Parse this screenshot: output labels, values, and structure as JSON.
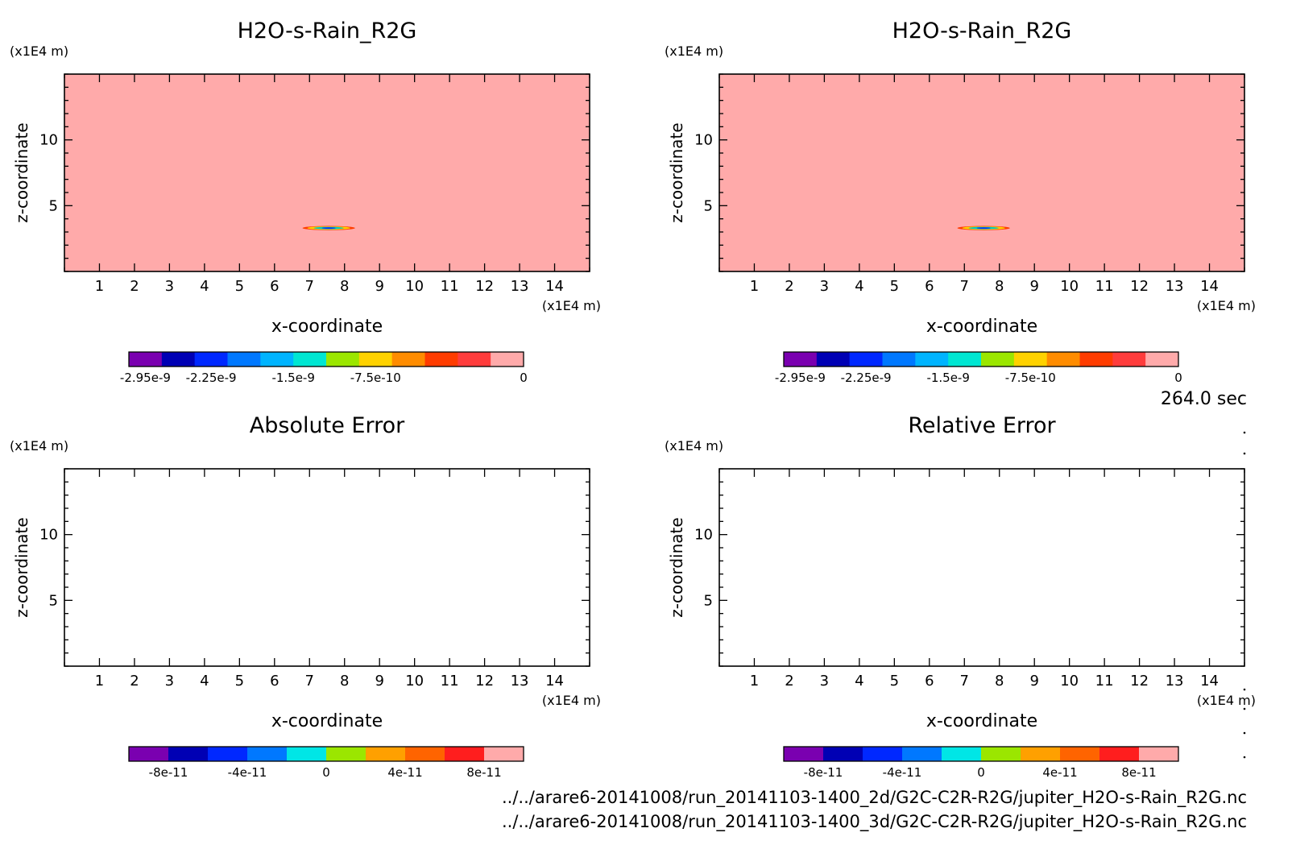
{
  "time_label": "264.0 sec",
  "footer": {
    "line1": "../../arare6-20141008/run_20141103-1400_2d/G2C-C2R-R2G/jupiter_H2O-s-Rain_R2G.nc",
    "line2": "../../arare6-20141008/run_20141103-1400_3d/G2C-C2R-R2G/jupiter_H2O-s-Rain_R2G.nc"
  },
  "chart_data": [
    {
      "type": "heatmap",
      "title": "H2O-s-Rain_R2G",
      "xlabel": "x-coordinate",
      "ylabel": "z-coordinate",
      "x_unit": "(x1E4 m)",
      "y_unit": "(x1E4 m)",
      "xlim": [
        0,
        15
      ],
      "ylim": [
        0,
        15
      ],
      "xticks": [
        "1",
        "2",
        "3",
        "4",
        "5",
        "6",
        "7",
        "8",
        "9",
        "10",
        "11",
        "12",
        "13",
        "14"
      ],
      "yticks": [
        "5",
        "10"
      ],
      "background_value": 0,
      "feature": {
        "x_range": [
          6.8,
          8.3
        ],
        "z": 3.3,
        "min_value": -2.95e-09
      },
      "colorbar": {
        "colors": [
          "#7a00b0",
          "#0000b4",
          "#0028ff",
          "#0078ff",
          "#00b4ff",
          "#00e6d2",
          "#9be600",
          "#ffd200",
          "#ff8c00",
          "#ff3c00",
          "#ff3c3c",
          "#ffaaaa"
        ],
        "tick_labels": [
          "-2.95e-9",
          "-2.25e-9",
          "-1.5e-9",
          "-7.5e-10",
          "0"
        ]
      }
    },
    {
      "type": "heatmap",
      "title": "H2O-s-Rain_R2G",
      "xlabel": "x-coordinate",
      "ylabel": "z-coordinate",
      "x_unit": "(x1E4 m)",
      "y_unit": "(x1E4 m)",
      "xlim": [
        0,
        15
      ],
      "ylim": [
        0,
        15
      ],
      "xticks": [
        "1",
        "2",
        "3",
        "4",
        "5",
        "6",
        "7",
        "8",
        "9",
        "10",
        "11",
        "12",
        "13",
        "14"
      ],
      "yticks": [
        "5",
        "10"
      ],
      "background_value": 0,
      "feature": {
        "x_range": [
          6.8,
          8.3
        ],
        "z": 3.3,
        "min_value": -2.95e-09
      },
      "colorbar": {
        "colors": [
          "#7a00b0",
          "#0000b4",
          "#0028ff",
          "#0078ff",
          "#00b4ff",
          "#00e6d2",
          "#9be600",
          "#ffd200",
          "#ff8c00",
          "#ff3c00",
          "#ff3c3c",
          "#ffaaaa"
        ],
        "tick_labels": [
          "-2.95e-9",
          "-2.25e-9",
          "-1.5e-9",
          "-7.5e-10",
          "0"
        ]
      }
    },
    {
      "type": "heatmap",
      "title": "Absolute Error",
      "xlabel": "x-coordinate",
      "ylabel": "z-coordinate",
      "x_unit": "(x1E4 m)",
      "y_unit": "(x1E4 m)",
      "xlim": [
        0,
        15
      ],
      "ylim": [
        0,
        15
      ],
      "xticks": [
        "1",
        "2",
        "3",
        "4",
        "5",
        "6",
        "7",
        "8",
        "9",
        "10",
        "11",
        "12",
        "13",
        "14"
      ],
      "yticks": [
        "5",
        "10"
      ],
      "colorbar": {
        "colors": [
          "#7a00b0",
          "#0000b4",
          "#0028ff",
          "#0078ff",
          "#00e6e6",
          "#9be600",
          "#ffa000",
          "#ff6400",
          "#ff1e1e",
          "#ffaaaa"
        ],
        "tick_labels": [
          "-8e-11",
          "-4e-11",
          "0",
          "4e-11",
          "8e-11"
        ]
      }
    },
    {
      "type": "heatmap",
      "title": "Relative Error",
      "xlabel": "x-coordinate",
      "ylabel": "z-coordinate",
      "x_unit": "(x1E4 m)",
      "y_unit": "(x1E4 m)",
      "xlim": [
        0,
        15
      ],
      "ylim": [
        0,
        15
      ],
      "xticks": [
        "1",
        "2",
        "3",
        "4",
        "5",
        "6",
        "7",
        "8",
        "9",
        "10",
        "11",
        "12",
        "13",
        "14"
      ],
      "yticks": [
        "5",
        "10"
      ],
      "colorbar": {
        "colors": [
          "#7a00b0",
          "#0000b4",
          "#0028ff",
          "#0078ff",
          "#00e6e6",
          "#9be600",
          "#ffa000",
          "#ff6400",
          "#ff1e1e",
          "#ffaaaa"
        ],
        "tick_labels": [
          "-8e-11",
          "-4e-11",
          "0",
          "4e-11",
          "8e-11"
        ]
      }
    }
  ]
}
